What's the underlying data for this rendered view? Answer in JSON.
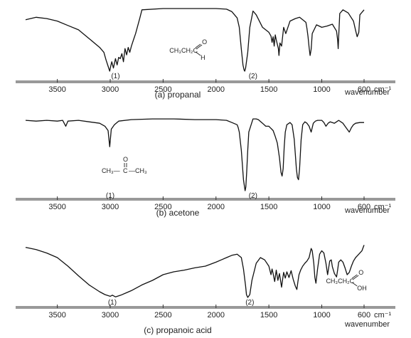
{
  "chart_data": [
    {
      "type": "line",
      "caption": "(a) propanal",
      "x_unit": "cm⁻¹",
      "xlabel": "wavenumber",
      "x_ticks": [
        {
          "value": 3500,
          "label": "3500"
        },
        {
          "value": 3000,
          "label": "3000"
        },
        {
          "value": 2500,
          "label": "2500"
        },
        {
          "value": 2000,
          "label": "2000"
        },
        {
          "value": 1500,
          "label": "1500"
        },
        {
          "value": 1000,
          "label": "1000"
        },
        {
          "value": 600,
          "label": "600"
        }
      ],
      "peak_labels": [
        {
          "text": "(1)",
          "x": 2950
        },
        {
          "text": "(2)",
          "x": 1650
        }
      ],
      "formula": {
        "main": "CH₃CH₂C",
        "top": "O",
        "bottom": "H",
        "x": 2440
      },
      "series": [
        {
          "x": [
            3800,
            3700,
            3600,
            3500,
            3400,
            3300,
            3200,
            3100,
            3060,
            3040,
            3020,
            3005,
            2995,
            2985,
            2970,
            2950,
            2935,
            2920,
            2905,
            2890,
            2875,
            2860,
            2845,
            2830,
            2815,
            2800,
            2780,
            2760,
            2720,
            2700,
            2500,
            2000,
            1900,
            1850,
            1800,
            1780,
            1760,
            1745,
            1735,
            1728,
            1720,
            1700,
            1680,
            1650,
            1620,
            1560,
            1500,
            1480,
            1470,
            1460,
            1450,
            1440,
            1430,
            1420,
            1410,
            1405,
            1395,
            1380,
            1360,
            1340,
            1300,
            1250,
            1210,
            1180,
            1150,
            1140,
            1130,
            1120,
            1110,
            1100,
            1090,
            1050,
            1000,
            950,
            900,
            860,
            850,
            845,
            840,
            830,
            800,
            750,
            700,
            680,
            665,
            650,
            640,
            600
          ],
          "y": [
            0.82,
            0.86,
            0.84,
            0.8,
            0.73,
            0.66,
            0.52,
            0.38,
            0.3,
            0.18,
            0.08,
            0.0,
            0.08,
            0.15,
            0.05,
            0.2,
            0.1,
            0.22,
            0.2,
            0.28,
            0.15,
            0.36,
            0.26,
            0.38,
            0.3,
            0.4,
            0.5,
            0.6,
            0.85,
            0.98,
            1.0,
            1.0,
            0.99,
            0.95,
            0.85,
            0.7,
            0.35,
            0.1,
            0.02,
            0.0,
            0.05,
            0.3,
            0.7,
            0.96,
            0.9,
            0.7,
            0.62,
            0.56,
            0.46,
            0.55,
            0.4,
            0.58,
            0.5,
            0.43,
            0.36,
            0.25,
            0.45,
            0.4,
            0.7,
            0.6,
            0.8,
            0.84,
            0.86,
            0.82,
            0.78,
            0.68,
            0.55,
            0.38,
            0.25,
            0.35,
            0.6,
            0.74,
            0.7,
            0.72,
            0.75,
            0.64,
            0.5,
            0.36,
            0.55,
            0.92,
            0.98,
            0.93,
            0.8,
            0.65,
            0.55,
            0.62,
            0.9,
            0.98
          ]
        }
      ]
    },
    {
      "type": "line",
      "caption": "(b) acetone",
      "x_unit": "cm⁻¹",
      "xlabel": "wavenumber",
      "x_ticks": [
        {
          "value": 3500,
          "label": "3500"
        },
        {
          "value": 3000,
          "label": "3000"
        },
        {
          "value": 2500,
          "label": "2500"
        },
        {
          "value": 2000,
          "label": "2000"
        },
        {
          "value": 1500,
          "label": "1500"
        },
        {
          "value": 1000,
          "label": "1000"
        },
        {
          "value": 600,
          "label": "600"
        }
      ],
      "peak_labels": [
        {
          "text": "(1)",
          "x": 3000
        },
        {
          "text": "(2)",
          "x": 1650
        }
      ],
      "formula": {
        "left": "CH₃—",
        "center": "C",
        "right": "—CH₃",
        "top": "O",
        "x": 3000
      },
      "series": [
        {
          "x": [
            3800,
            3700,
            3600,
            3500,
            3450,
            3420,
            3400,
            3300,
            3200,
            3100,
            3050,
            3020,
            3005,
            2990,
            2960,
            2920,
            2800,
            2600,
            2400,
            2200,
            2000,
            1900,
            1850,
            1800,
            1790,
            1780,
            1760,
            1750,
            1740,
            1730,
            1725,
            1718,
            1710,
            1700,
            1690,
            1650,
            1620,
            1600,
            1560,
            1530,
            1500,
            1460,
            1440,
            1420,
            1400,
            1385,
            1375,
            1365,
            1355,
            1345,
            1330,
            1300,
            1280,
            1260,
            1250,
            1240,
            1230,
            1220,
            1210,
            1195,
            1180,
            1160,
            1140,
            1120,
            1100,
            1090,
            1080,
            1060,
            1040,
            1000,
            980,
            960,
            940,
            920,
            900,
            880,
            860,
            840,
            800,
            780,
            760,
            740,
            720,
            700,
            680,
            640,
            600
          ],
          "y": [
            0.96,
            0.95,
            0.96,
            0.95,
            0.96,
            0.88,
            0.95,
            0.96,
            0.94,
            0.92,
            0.88,
            0.82,
            0.6,
            0.84,
            0.9,
            0.95,
            0.97,
            0.98,
            0.98,
            0.97,
            0.97,
            0.96,
            0.93,
            0.9,
            0.86,
            0.8,
            0.55,
            0.35,
            0.15,
            0.05,
            0.0,
            0.05,
            0.25,
            0.55,
            0.8,
            0.98,
            0.98,
            0.97,
            0.92,
            0.88,
            0.88,
            0.82,
            0.74,
            0.65,
            0.45,
            0.25,
            0.2,
            0.3,
            0.6,
            0.8,
            0.9,
            0.93,
            0.9,
            0.7,
            0.5,
            0.3,
            0.18,
            0.15,
            0.3,
            0.7,
            0.9,
            0.94,
            0.92,
            0.88,
            0.8,
            0.86,
            0.92,
            0.95,
            0.96,
            0.96,
            0.93,
            0.88,
            0.92,
            0.94,
            0.93,
            0.92,
            0.94,
            0.96,
            0.92,
            0.88,
            0.84,
            0.8,
            0.86,
            0.9,
            0.92,
            0.93,
            0.93
          ]
        }
      ]
    },
    {
      "type": "line",
      "caption": "(c) propanoic acid",
      "x_unit": "cm⁻¹",
      "xlabel": "wavenumber",
      "x_ticks": [
        {
          "value": 3500,
          "label": "3500"
        },
        {
          "value": 3000,
          "label": "3000"
        },
        {
          "value": 2500,
          "label": "2500"
        },
        {
          "value": 2000,
          "label": "2000"
        },
        {
          "value": 1500,
          "label": "1500"
        },
        {
          "value": 1000,
          "label": "1000"
        },
        {
          "value": 600,
          "label": "600"
        }
      ],
      "peak_labels": [
        {
          "text": "(1)",
          "x": 2980
        },
        {
          "text": "(2)",
          "x": 1680
        }
      ],
      "formula": {
        "main": "CH₃CH₂C",
        "top": "O",
        "bottom": "OH",
        "x": 960
      },
      "series": [
        {
          "x": [
            3800,
            3700,
            3600,
            3500,
            3400,
            3300,
            3200,
            3100,
            3050,
            3000,
            2980,
            2950,
            2900,
            2850,
            2800,
            2700,
            2600,
            2500,
            2400,
            2300,
            2200,
            2100,
            2000,
            1950,
            1900,
            1850,
            1800,
            1760,
            1740,
            1720,
            1712,
            1700,
            1680,
            1660,
            1620,
            1580,
            1540,
            1500,
            1480,
            1470,
            1460,
            1445,
            1430,
            1415,
            1400,
            1380,
            1370,
            1360,
            1345,
            1330,
            1310,
            1290,
            1270,
            1250,
            1235,
            1225,
            1215,
            1200,
            1180,
            1160,
            1140,
            1120,
            1100,
            1090,
            1075,
            1065,
            1055,
            1040,
            1020,
            1000,
            980,
            960,
            945,
            935,
            925,
            910,
            900,
            880,
            860,
            850,
            840,
            820,
            800,
            780,
            760,
            740,
            720,
            700,
            680,
            660,
            640,
            620,
            600
          ],
          "y": [
            0.88,
            0.84,
            0.78,
            0.7,
            0.55,
            0.38,
            0.22,
            0.1,
            0.05,
            0.02,
            0.04,
            0.01,
            0.04,
            0.08,
            0.12,
            0.22,
            0.3,
            0.4,
            0.45,
            0.48,
            0.52,
            0.55,
            0.62,
            0.66,
            0.7,
            0.74,
            0.76,
            0.7,
            0.5,
            0.2,
            0.05,
            0.0,
            0.05,
            0.3,
            0.6,
            0.7,
            0.66,
            0.55,
            0.4,
            0.5,
            0.42,
            0.28,
            0.48,
            0.3,
            0.42,
            0.18,
            0.32,
            0.44,
            0.34,
            0.45,
            0.35,
            0.47,
            0.32,
            0.2,
            0.14,
            0.28,
            0.4,
            0.48,
            0.55,
            0.6,
            0.64,
            0.7,
            0.86,
            0.82,
            0.6,
            0.35,
            0.25,
            0.5,
            0.76,
            0.82,
            0.78,
            0.6,
            0.4,
            0.52,
            0.64,
            0.66,
            0.54,
            0.42,
            0.36,
            0.48,
            0.62,
            0.66,
            0.62,
            0.52,
            0.4,
            0.44,
            0.55,
            0.64,
            0.7,
            0.74,
            0.78,
            0.82,
            0.92
          ]
        }
      ]
    }
  ]
}
